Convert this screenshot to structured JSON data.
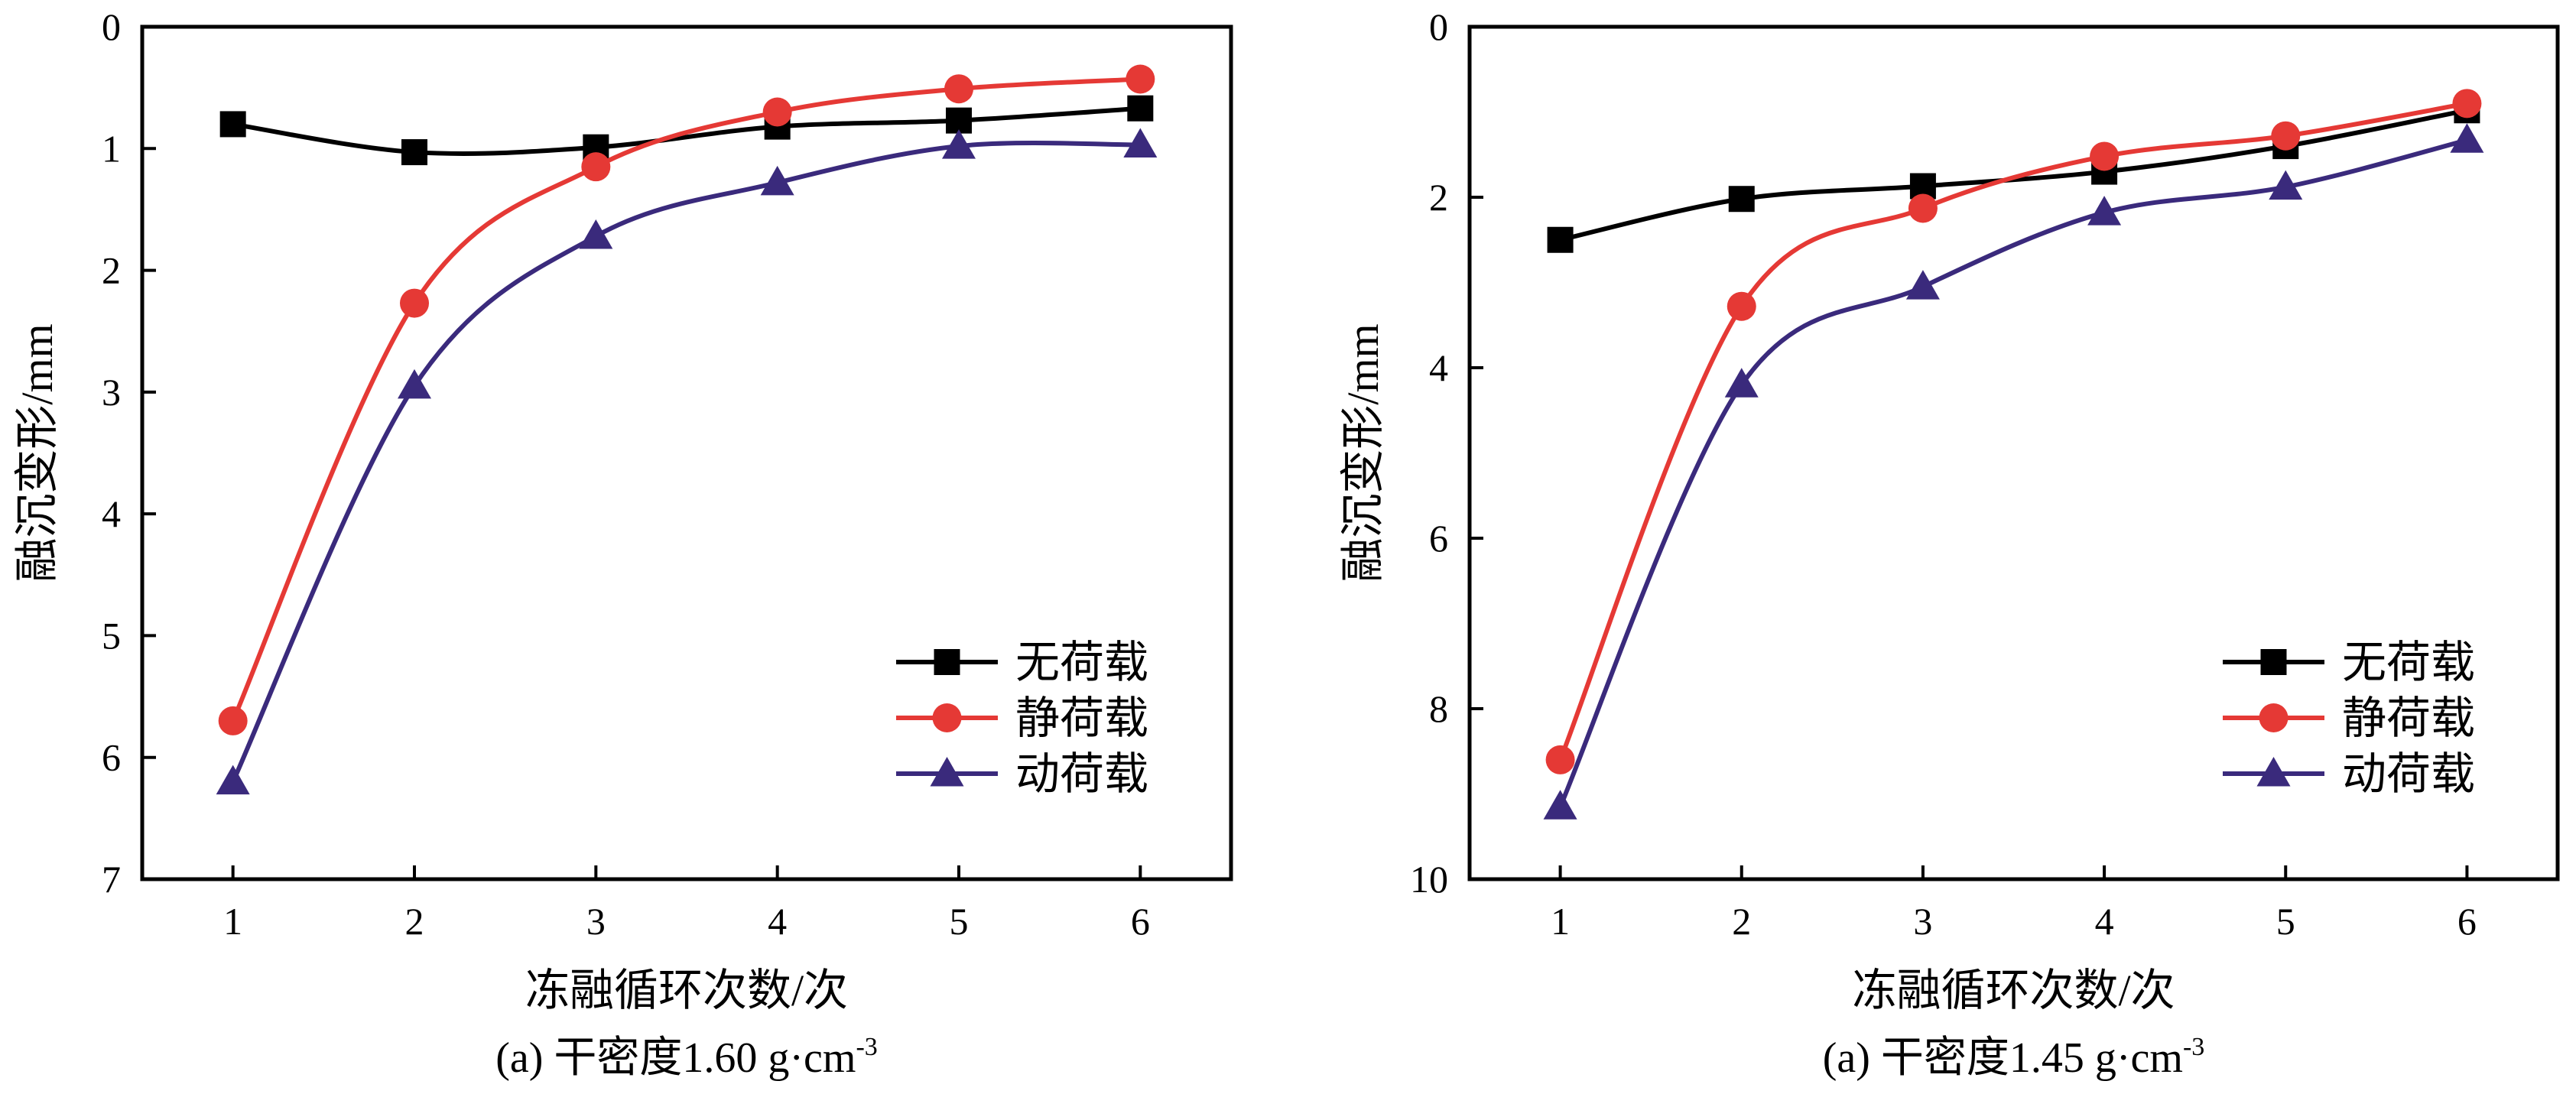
{
  "colors": {
    "no_load": "#000000",
    "static_load": "#e53935",
    "dynamic_load": "#3a2a7c",
    "axis": "#000000"
  },
  "chart_data": [
    {
      "type": "line",
      "caption_main": "(a) 干密度1.60 g·cm",
      "caption_sup": "-3",
      "xlabel": "冻融循环次数/次",
      "ylabel": "融沉变形/mm",
      "x": [
        1,
        2,
        3,
        4,
        5,
        6
      ],
      "xlim": [
        0.5,
        6.5
      ],
      "ylim": [
        0,
        7
      ],
      "y_inverted": true,
      "xticks": [
        1,
        2,
        3,
        4,
        5,
        6
      ],
      "yticks": [
        0,
        1,
        2,
        3,
        4,
        5,
        6,
        7
      ],
      "legend_position": "bottom-right",
      "series": [
        {
          "name": "无荷载",
          "marker": "square",
          "color_key": "no_load",
          "values": [
            0.8,
            1.03,
            0.99,
            0.82,
            0.77,
            0.67
          ]
        },
        {
          "name": "静荷载",
          "marker": "circle",
          "color_key": "static_load",
          "values": [
            5.7,
            2.27,
            1.15,
            0.7,
            0.51,
            0.43
          ]
        },
        {
          "name": "动荷载",
          "marker": "triangle",
          "color_key": "dynamic_load",
          "values": [
            6.2,
            2.95,
            1.72,
            1.28,
            0.98,
            0.97
          ]
        }
      ]
    },
    {
      "type": "line",
      "caption_main": "(a) 干密度1.45 g·cm",
      "caption_sup": "-3",
      "xlabel": "冻融循环次数/次",
      "ylabel": "融沉变形/mm",
      "x": [
        1,
        2,
        3,
        4,
        5,
        6
      ],
      "xlim": [
        0.5,
        6.5
      ],
      "ylim": [
        0,
        10
      ],
      "y_inverted": true,
      "xticks": [
        1,
        2,
        3,
        4,
        5,
        6
      ],
      "yticks": [
        0,
        2,
        4,
        6,
        8,
        10
      ],
      "legend_position": "bottom-right",
      "series": [
        {
          "name": "无荷载",
          "marker": "square",
          "color_key": "no_load",
          "values": [
            2.5,
            2.02,
            1.87,
            1.7,
            1.4,
            0.98
          ]
        },
        {
          "name": "静荷载",
          "marker": "circle",
          "color_key": "static_load",
          "values": [
            8.6,
            3.28,
            2.13,
            1.52,
            1.28,
            0.9
          ]
        },
        {
          "name": "动荷载",
          "marker": "triangle",
          "color_key": "dynamic_load",
          "values": [
            9.15,
            4.2,
            3.05,
            2.18,
            1.88,
            1.33
          ]
        }
      ]
    }
  ]
}
